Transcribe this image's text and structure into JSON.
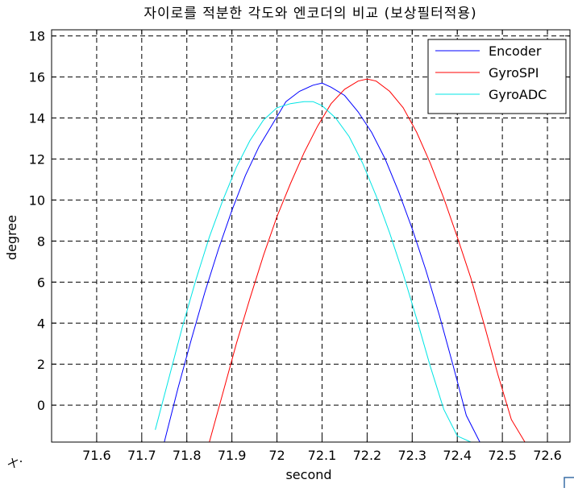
{
  "chart_data": {
    "type": "line",
    "title": "자이로를 적분한 각도와 엔코더의 비교 (보상필터적용)",
    "xlabel": "second",
    "ylabel": "degree",
    "xlim": [
      71.5,
      72.65
    ],
    "ylim": [
      -1.8,
      18.3
    ],
    "xticks": [
      71.6,
      71.7,
      71.8,
      71.9,
      72,
      72.1,
      72.2,
      72.3,
      72.4,
      72.5,
      72.6
    ],
    "yticks": [
      0,
      2,
      4,
      6,
      8,
      10,
      12,
      14,
      16,
      18
    ],
    "xtick_labels": [
      "71.6",
      "71.7",
      "71.8",
      "71.9",
      "72",
      "72.1",
      "72.2",
      "72.3",
      "72.4",
      "72.5",
      "72.6"
    ],
    "ytick_labels": [
      "0",
      "2",
      "4",
      "6",
      "8",
      "10",
      "12",
      "14",
      "16",
      "18"
    ],
    "grid": true,
    "legend_position": "top-right",
    "series": [
      {
        "name": "Encoder",
        "color": "#0000ff",
        "x": [
          71.75,
          71.78,
          71.81,
          71.84,
          71.87,
          71.9,
          71.93,
          71.96,
          71.99,
          72.02,
          72.05,
          72.08,
          72.1,
          72.12,
          72.15,
          72.18,
          72.21,
          72.24,
          72.27,
          72.3,
          72.33,
          72.36,
          72.39,
          72.42,
          72.45
        ],
        "y": [
          -1.8,
          0.8,
          3.2,
          5.5,
          7.6,
          9.5,
          11.2,
          12.6,
          13.7,
          14.8,
          15.3,
          15.6,
          15.7,
          15.5,
          15.1,
          14.3,
          13.3,
          12.0,
          10.4,
          8.6,
          6.6,
          4.4,
          2.0,
          -0.5,
          -1.8
        ]
      },
      {
        "name": "GyroSPI",
        "color": "#ff0000",
        "x": [
          71.85,
          71.88,
          71.91,
          71.94,
          71.97,
          72.0,
          72.03,
          72.06,
          72.09,
          72.12,
          72.15,
          72.18,
          72.2,
          72.22,
          72.25,
          72.28,
          72.31,
          72.34,
          72.37,
          72.4,
          72.43,
          72.46,
          72.49,
          72.52,
          72.55
        ],
        "y": [
          -1.8,
          0.6,
          3.0,
          5.2,
          7.3,
          9.2,
          10.8,
          12.3,
          13.6,
          14.7,
          15.4,
          15.8,
          15.9,
          15.8,
          15.3,
          14.5,
          13.3,
          11.8,
          10.1,
          8.2,
          6.2,
          3.9,
          1.5,
          -0.7,
          -1.8
        ]
      },
      {
        "name": "GyroADC",
        "color": "#00e5e5",
        "x": [
          71.73,
          71.76,
          71.79,
          71.82,
          71.85,
          71.88,
          71.91,
          71.94,
          71.97,
          72.0,
          72.03,
          72.06,
          72.08,
          72.1,
          72.13,
          72.16,
          72.19,
          72.22,
          72.25,
          72.28,
          72.31,
          72.34,
          72.37,
          72.4,
          72.43
        ],
        "y": [
          -1.2,
          1.3,
          3.8,
          6.1,
          8.2,
          10.0,
          11.6,
          12.9,
          13.9,
          14.5,
          14.7,
          14.8,
          14.8,
          14.6,
          14.0,
          13.1,
          11.8,
          10.2,
          8.4,
          6.4,
          4.2,
          1.9,
          -0.2,
          -1.5,
          -1.8
        ]
      }
    ]
  }
}
